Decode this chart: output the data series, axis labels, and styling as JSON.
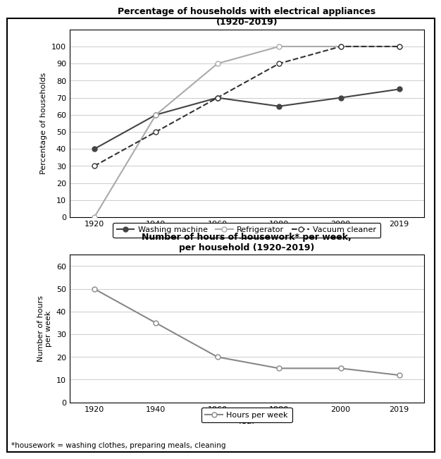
{
  "years": [
    1920,
    1940,
    1960,
    1980,
    2000,
    2019
  ],
  "washing_machine": [
    40,
    60,
    70,
    65,
    70,
    75
  ],
  "refrigerator": [
    0,
    60,
    90,
    100,
    100,
    100
  ],
  "vacuum_cleaner": [
    30,
    50,
    70,
    90,
    100,
    100
  ],
  "hours_per_week": [
    50,
    35,
    20,
    15,
    15,
    12
  ],
  "title1": "Percentage of households with electrical appliances\n(1920–2019)",
  "title2": "Number of hours of housework* per week,\nper household (1920–2019)",
  "ylabel1": "Percentage of households",
  "ylabel2": "Number of hours\nper week",
  "xlabel": "Year",
  "footnote": "*housework = washing clothes, preparing meals, cleaning",
  "ylim1": [
    0,
    110
  ],
  "ylim2": [
    0,
    65
  ],
  "yticks1": [
    0,
    10,
    20,
    30,
    40,
    50,
    60,
    70,
    80,
    90,
    100
  ],
  "yticks2": [
    0,
    10,
    20,
    30,
    40,
    50,
    60
  ],
  "line_color_wm": "#444444",
  "line_color_ref": "#aaaaaa",
  "line_color_vc": "#333333",
  "line_color_hours": "#888888"
}
